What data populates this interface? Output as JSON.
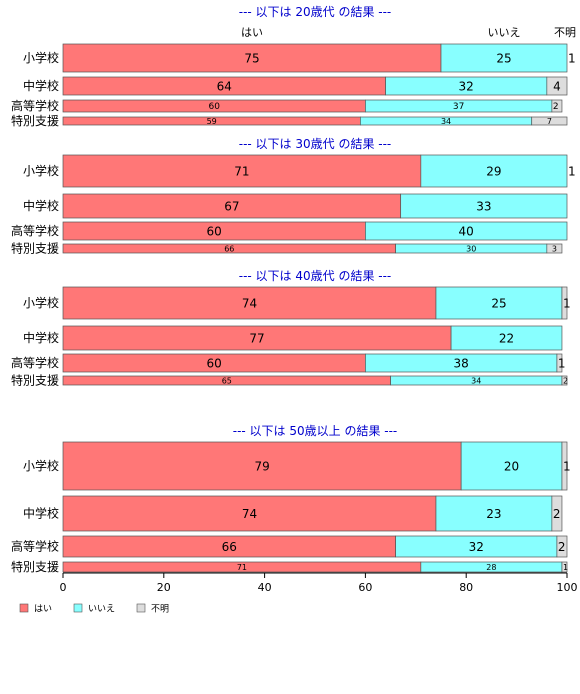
{
  "chart_data": {
    "type": "bar",
    "orientation": "horizontal",
    "stacked": true,
    "xlim": [
      0,
      100
    ],
    "x_ticks": [
      0,
      20,
      40,
      60,
      80,
      100
    ],
    "column_headers": [
      "はい",
      "いいえ",
      "不明"
    ],
    "colors": {
      "はい": "#ff7777",
      "いいえ": "#88ffff",
      "不明": "#dddddd"
    },
    "legend": {
      "position": "bottom-left",
      "entries": [
        "はい",
        "いいえ",
        "不明"
      ]
    },
    "panels": [
      {
        "title": "--- 以下は 20歳代 の結果 ---",
        "categories": [
          "小学校",
          "中学校",
          "高等学校",
          "特別支援"
        ],
        "series": [
          {
            "name": "はい",
            "values": [
              75,
              64,
              60,
              59
            ]
          },
          {
            "name": "いいえ",
            "values": [
              25,
              32,
              37,
              34
            ]
          },
          {
            "name": "不明",
            "values": [
              1,
              4,
              2,
              7
            ]
          }
        ]
      },
      {
        "title": "--- 以下は 30歳代 の結果 ---",
        "categories": [
          "小学校",
          "中学校",
          "高等学校",
          "特別支援"
        ],
        "series": [
          {
            "name": "はい",
            "values": [
              71,
              67,
              60,
              66
            ]
          },
          {
            "name": "いいえ",
            "values": [
              29,
              33,
              40,
              30
            ]
          },
          {
            "name": "不明",
            "values": [
              1,
              0,
              0,
              3
            ]
          }
        ]
      },
      {
        "title": "--- 以下は 40歳代 の結果 ---",
        "categories": [
          "小学校",
          "中学校",
          "高等学校",
          "特別支援"
        ],
        "series": [
          {
            "name": "はい",
            "values": [
              74,
              77,
              60,
              65
            ]
          },
          {
            "name": "いいえ",
            "values": [
              25,
              22,
              38,
              34
            ]
          },
          {
            "name": "不明",
            "values": [
              1,
              0,
              1,
              2
            ]
          }
        ]
      },
      {
        "title": "--- 以下は 50歳以上 の結果 ---",
        "categories": [
          "小学校",
          "中学校",
          "高等学校",
          "特別支援"
        ],
        "series": [
          {
            "name": "はい",
            "values": [
              79,
              74,
              66,
              71
            ]
          },
          {
            "name": "いいえ",
            "values": [
              20,
              23,
              32,
              28
            ]
          },
          {
            "name": "不明",
            "values": [
              1,
              2,
              2,
              1
            ]
          }
        ]
      }
    ]
  }
}
